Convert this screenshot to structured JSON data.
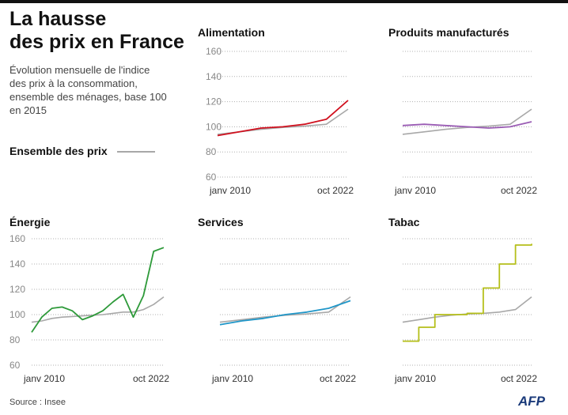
{
  "header": {
    "title_line1": "La hausse",
    "title_line2": "des prix en France",
    "subtitle": "Évolution mensuelle de l'indice des prix à la consommation, ensemble des ménages, base 100 en 2015",
    "legend_label": "Ensemble des prix"
  },
  "footer": {
    "source": "Source : Insee",
    "logo": "AFP"
  },
  "colors": {
    "reference": "#a8a8a8",
    "alimentation": "#d0101e",
    "produits": "#9a5cb4",
    "energie": "#2e9a3a",
    "services": "#1f96c8",
    "tabac": "#b5bf1a",
    "grid": "#b0b0b0"
  },
  "chart_data": [
    {
      "type": "line",
      "id": "alimentation",
      "title": "Alimentation",
      "x": [
        "janv 2010",
        "2012",
        "2014",
        "2016",
        "2018",
        "2020",
        "oct 2022"
      ],
      "xtick_labels": [
        "janv 2010",
        "oct 2022"
      ],
      "yticks": [
        60,
        80,
        100,
        120,
        140,
        160
      ],
      "show_ytick_labels": true,
      "ylim": [
        60,
        160
      ],
      "series": [
        {
          "name": "Ensemble des prix",
          "values": [
            94,
            96,
            98,
            99.5,
            100.5,
            102,
            114
          ]
        },
        {
          "name": "Alimentation",
          "values": [
            93,
            96,
            99,
            100,
            102,
            106,
            121
          ]
        }
      ]
    },
    {
      "type": "line",
      "id": "produits",
      "title": "Produits manufacturés",
      "x": [
        "janv 2010",
        "2012",
        "2014",
        "2016",
        "2018",
        "2020",
        "oct 2022"
      ],
      "xtick_labels": [
        "janv 2010",
        "oct 2022"
      ],
      "yticks": [
        60,
        80,
        100,
        120,
        140,
        160
      ],
      "show_ytick_labels": false,
      "ylim": [
        60,
        160
      ],
      "series": [
        {
          "name": "Ensemble des prix",
          "values": [
            94,
            96,
            98,
            99.5,
            100.5,
            102,
            114
          ]
        },
        {
          "name": "Produits manufacturés",
          "values": [
            101,
            102,
            101,
            100,
            99,
            100,
            104
          ]
        }
      ]
    },
    {
      "type": "line",
      "id": "energie",
      "title": "Énergie",
      "x": [
        "janv 2010",
        "2011",
        "2012",
        "2013",
        "2014",
        "2015",
        "2016",
        "2017",
        "2018",
        "2019",
        "2020",
        "2021",
        "2022",
        "oct 2022"
      ],
      "xtick_labels": [
        "janv 2010",
        "oct 2022"
      ],
      "yticks": [
        60,
        80,
        100,
        120,
        140,
        160
      ],
      "show_ytick_labels": true,
      "ylim": [
        60,
        160
      ],
      "series": [
        {
          "name": "Ensemble des prix",
          "values": [
            94,
            95,
            97,
            98,
            98.5,
            99,
            99.5,
            100,
            101,
            102,
            102,
            104,
            108,
            114
          ]
        },
        {
          "name": "Énergie",
          "values": [
            86,
            98,
            105,
            106,
            103,
            96,
            99,
            103,
            110,
            116,
            98,
            115,
            150,
            153
          ]
        }
      ]
    },
    {
      "type": "line",
      "id": "services",
      "title": "Services",
      "x": [
        "janv 2010",
        "2012",
        "2014",
        "2016",
        "2018",
        "2020",
        "oct 2022"
      ],
      "xtick_labels": [
        "janv 2010",
        "oct 2022"
      ],
      "yticks": [
        60,
        80,
        100,
        120,
        140,
        160
      ],
      "show_ytick_labels": false,
      "ylim": [
        60,
        160
      ],
      "series": [
        {
          "name": "Ensemble des prix",
          "values": [
            94,
            96,
            98,
            99.5,
            100.5,
            102,
            114
          ]
        },
        {
          "name": "Services",
          "values": [
            92,
            95,
            97,
            100,
            102,
            105,
            111
          ]
        }
      ]
    },
    {
      "type": "line",
      "id": "tabac",
      "title": "Tabac",
      "x": [
        "janv 2010",
        "2012",
        "2014",
        "2016",
        "2018",
        "2019",
        "2020",
        "2021",
        "oct 2022"
      ],
      "xtick_labels": [
        "janv 2010",
        "oct 2022"
      ],
      "yticks": [
        60,
        80,
        100,
        120,
        140,
        160
      ],
      "show_ytick_labels": false,
      "ylim": [
        60,
        160
      ],
      "series": [
        {
          "name": "Ensemble des prix",
          "values": [
            94,
            96,
            98,
            99.5,
            100.5,
            101,
            102,
            104,
            114
          ]
        },
        {
          "name": "Tabac",
          "values": [
            79,
            90,
            100,
            100,
            101,
            121,
            140,
            155,
            156
          ]
        }
      ]
    }
  ]
}
